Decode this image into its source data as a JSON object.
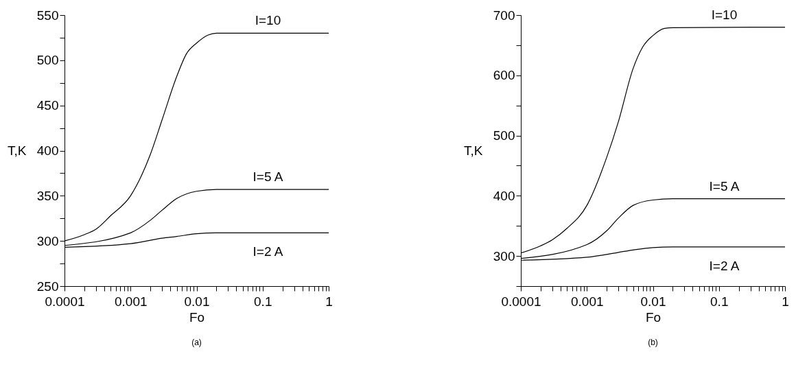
{
  "chart_data": [
    {
      "type": "line",
      "xlabel": "Fo",
      "ylabel": "T,K",
      "log": "x",
      "grid": false,
      "legend": false,
      "marker": "none",
      "line_style": "solid",
      "xlim": [
        0.0001,
        1
      ],
      "ylim": [
        250,
        550
      ],
      "xticks": [
        0.0001,
        {
          "value": 0.0002,
          "label": null
        },
        {
          "value": 0.0003,
          "label": null
        },
        {
          "value": 0.0004,
          "label": null
        },
        {
          "value": 0.0005,
          "label": null
        },
        {
          "value": 0.0006,
          "label": null
        },
        {
          "value": 0.0007,
          "label": null
        },
        {
          "value": 0.0008,
          "label": null
        },
        {
          "value": 0.0009,
          "label": null
        },
        0.001,
        {
          "value": 0.002,
          "label": null
        },
        {
          "value": 0.003,
          "label": null
        },
        {
          "value": 0.004,
          "label": null
        },
        {
          "value": 0.005,
          "label": null
        },
        {
          "value": 0.006,
          "label": null
        },
        {
          "value": 0.007,
          "label": null
        },
        {
          "value": 0.008,
          "label": null
        },
        {
          "value": 0.009,
          "label": null
        },
        0.01,
        {
          "value": 0.02,
          "label": null
        },
        {
          "value": 0.03,
          "label": null
        },
        {
          "value": 0.04,
          "label": null
        },
        {
          "value": 0.05,
          "label": null
        },
        {
          "value": 0.06,
          "label": null
        },
        {
          "value": 0.07,
          "label": null
        },
        {
          "value": 0.08,
          "label": null
        },
        {
          "value": 0.09,
          "label": null
        },
        0.1,
        {
          "value": 0.2,
          "label": null
        },
        {
          "value": 0.3,
          "label": null
        },
        {
          "value": 0.4,
          "label": null
        },
        {
          "value": 0.5,
          "label": null
        },
        {
          "value": 0.6,
          "label": null
        },
        {
          "value": 0.7,
          "label": null
        },
        {
          "value": 0.8,
          "label": null
        },
        {
          "value": 0.9,
          "label": null
        },
        1
      ],
      "yticks": [
        250,
        {
          "value": 275,
          "label": null
        },
        300,
        {
          "value": 325,
          "label": null
        },
        350,
        {
          "value": 375,
          "label": null
        },
        400,
        {
          "value": 425,
          "label": null
        },
        450,
        {
          "value": 475,
          "label": null
        },
        500,
        {
          "value": 525,
          "label": null
        },
        550
      ],
      "annotations": [
        "(a)"
      ],
      "series": [
        {
          "name": "I=10",
          "color": "#000000",
          "x": [
            0.0001,
            0.0002,
            0.0003,
            0.0005,
            0.001,
            0.002,
            0.003,
            0.005,
            0.007,
            0.01,
            0.015,
            0.02,
            1
          ],
          "values": [
            300,
            307,
            313,
            328,
            350,
            396,
            434,
            482,
            507,
            519,
            528,
            530,
            530
          ]
        },
        {
          "name": "I=5 A",
          "color": "#000000",
          "x": [
            0.0001,
            0.001,
            0.002,
            0.003,
            0.005,
            0.01,
            0.02,
            1
          ],
          "values": [
            295,
            309,
            323,
            334,
            347,
            355,
            357,
            357
          ]
        },
        {
          "name": "I=2 A",
          "color": "#000000",
          "x": [
            0.0001,
            0.001,
            0.003,
            0.005,
            0.01,
            0.02,
            1
          ],
          "values": [
            293,
            297,
            303,
            305,
            308,
            309,
            309
          ]
        }
      ]
    },
    {
      "type": "line",
      "xlabel": "Fo",
      "ylabel": "T,K",
      "log": "x",
      "grid": false,
      "legend": false,
      "marker": "none",
      "line_style": "solid",
      "xlim": [
        0.0001,
        1
      ],
      "ylim": [
        250,
        700
      ],
      "xticks": [
        0.0001,
        {
          "value": 0.0002,
          "label": null
        },
        {
          "value": 0.0003,
          "label": null
        },
        {
          "value": 0.0004,
          "label": null
        },
        {
          "value": 0.0005,
          "label": null
        },
        {
          "value": 0.0006,
          "label": null
        },
        {
          "value": 0.0007,
          "label": null
        },
        {
          "value": 0.0008,
          "label": null
        },
        {
          "value": 0.0009,
          "label": null
        },
        0.001,
        {
          "value": 0.002,
          "label": null
        },
        {
          "value": 0.003,
          "label": null
        },
        {
          "value": 0.004,
          "label": null
        },
        {
          "value": 0.005,
          "label": null
        },
        {
          "value": 0.006,
          "label": null
        },
        {
          "value": 0.007,
          "label": null
        },
        {
          "value": 0.008,
          "label": null
        },
        {
          "value": 0.009,
          "label": null
        },
        0.01,
        {
          "value": 0.02,
          "label": null
        },
        {
          "value": 0.03,
          "label": null
        },
        {
          "value": 0.04,
          "label": null
        },
        {
          "value": 0.05,
          "label": null
        },
        {
          "value": 0.06,
          "label": null
        },
        {
          "value": 0.07,
          "label": null
        },
        {
          "value": 0.08,
          "label": null
        },
        {
          "value": 0.09,
          "label": null
        },
        0.1,
        {
          "value": 0.2,
          "label": null
        },
        {
          "value": 0.3,
          "label": null
        },
        {
          "value": 0.4,
          "label": null
        },
        {
          "value": 0.5,
          "label": null
        },
        {
          "value": 0.6,
          "label": null
        },
        {
          "value": 0.7,
          "label": null
        },
        {
          "value": 0.8,
          "label": null
        },
        {
          "value": 0.9,
          "label": null
        },
        1
      ],
      "yticks": [
        {
          "value": 250,
          "label": null
        },
        300,
        {
          "value": 350,
          "label": null
        },
        400,
        {
          "value": 450,
          "label": null
        },
        500,
        {
          "value": 550,
          "label": null
        },
        600,
        {
          "value": 650,
          "label": null
        },
        700
      ],
      "annotations": [
        "(b)"
      ],
      "series": [
        {
          "name": "I=10",
          "color": "#000000",
          "x": [
            0.0001,
            0.0002,
            0.0003,
            0.0005,
            0.001,
            0.002,
            0.003,
            0.005,
            0.007,
            0.01,
            0.015,
            0.02,
            1
          ],
          "values": [
            305,
            317,
            327,
            346,
            384,
            464,
            523,
            611,
            647,
            666,
            678,
            679,
            680
          ]
        },
        {
          "name": "I=5 A",
          "color": "#000000",
          "x": [
            0.0001,
            0.001,
            0.002,
            0.003,
            0.005,
            0.01,
            0.02,
            1
          ],
          "values": [
            296,
            319,
            342,
            363,
            384,
            393,
            395,
            395
          ]
        },
        {
          "name": "I=2 A",
          "color": "#000000",
          "x": [
            0.0001,
            0.001,
            0.003,
            0.005,
            0.01,
            0.02,
            1
          ],
          "values": [
            293,
            298,
            306,
            310,
            314,
            315,
            315
          ]
        }
      ]
    }
  ]
}
